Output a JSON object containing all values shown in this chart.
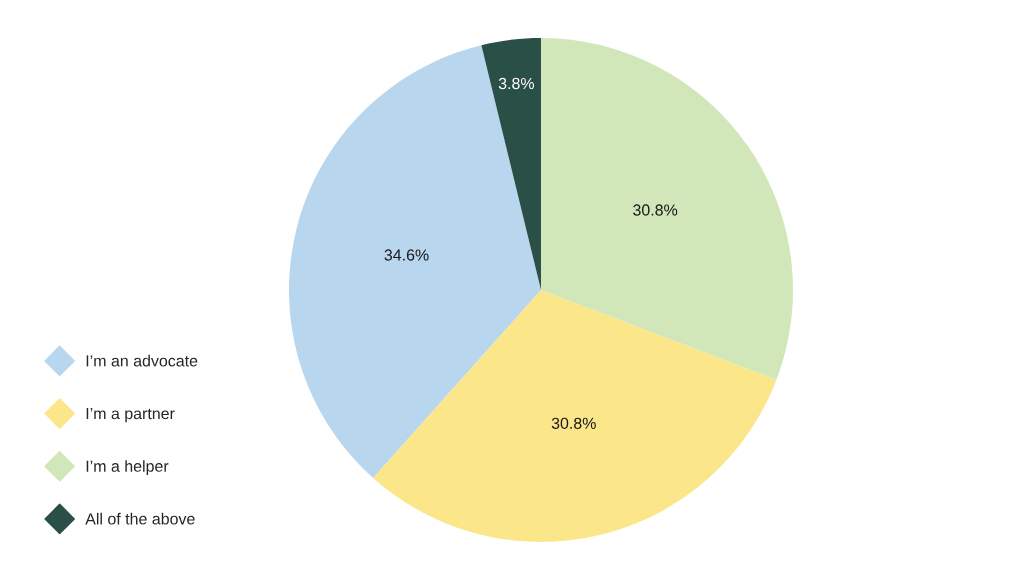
{
  "chart_data": {
    "type": "pie",
    "categories": [
      "I’m an advocate",
      "I’m a partner",
      "I’m a helper",
      "All of the above"
    ],
    "values": [
      34.6,
      30.8,
      30.8,
      3.8
    ],
    "colors": [
      "#b9d6ef",
      "#fce68a",
      "#d1e6b9",
      "#2a4f47"
    ],
    "value_labels": [
      "34.6%",
      "30.8%",
      "30.8%",
      "3.8%"
    ],
    "legend": "bottom left"
  }
}
